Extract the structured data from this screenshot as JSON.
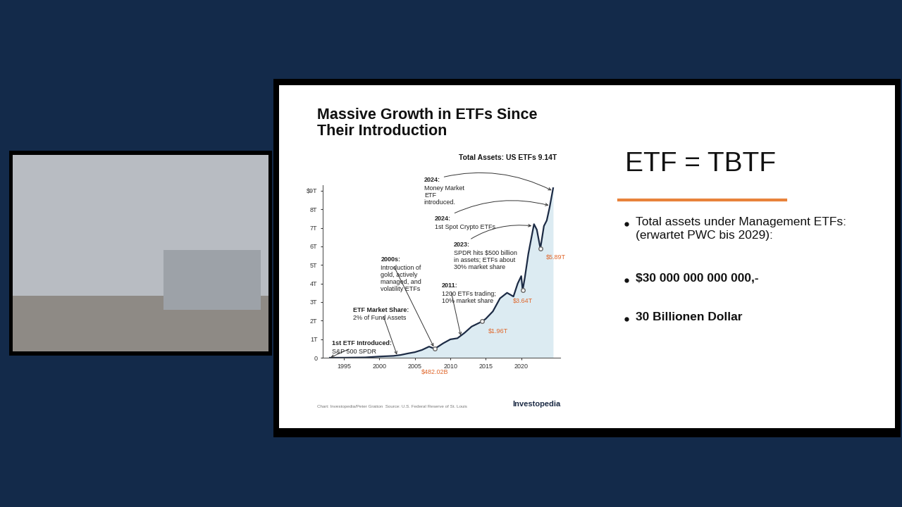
{
  "chart_data": {
    "type": "line",
    "title": "Massive Growth in ETFs Since\nTheir Introduction",
    "subtitle": "Total Assets: US ETFs 9.14T",
    "x": [
      1993.0,
      1995.0,
      1998.0,
      2000.0,
      2002.0,
      2003.0,
      2004.0,
      2005.0,
      2006.0,
      2007.0,
      2007.8,
      2009.0,
      2010.0,
      2011.0,
      2012.0,
      2013.0,
      2014.5,
      2015.0,
      2016.0,
      2017.0,
      2018.0,
      2018.9,
      2019.5,
      2020.0,
      2020.2,
      2020.5,
      2021.0,
      2021.8,
      2022.2,
      2022.7,
      2023.2,
      2023.6,
      2024.0,
      2024.5
    ],
    "values": [
      0.0,
      0.002,
      0.016,
      0.066,
      0.1,
      0.15,
      0.23,
      0.3,
      0.42,
      0.6,
      0.48202,
      0.78,
      0.99,
      1.05,
      1.34,
      1.68,
      1.96,
      2.1,
      2.5,
      3.2,
      3.5,
      3.3,
      4.0,
      4.4,
      3.64,
      4.3,
      5.6,
      7.2,
      6.9,
      5.89,
      7.1,
      7.4,
      8.1,
      9.14
    ],
    "color": "#1c2b45",
    "xlim": [
      1992,
      2025.5
    ],
    "xticks": [
      1995,
      2000,
      2005,
      2010,
      2015,
      2020
    ],
    "ylim": [
      0,
      9.3
    ],
    "yticks": [
      0,
      {
        "value": 1,
        "label": "1T"
      },
      {
        "value": 2,
        "label": "2T"
      },
      {
        "value": 3,
        "label": "3T"
      },
      {
        "value": 4,
        "label": "4T"
      },
      {
        "value": 5,
        "label": "5T"
      },
      {
        "value": 6,
        "label": "6T"
      },
      {
        "value": 7,
        "label": "7T"
      },
      {
        "value": 8,
        "label": "8T"
      },
      {
        "value": 9,
        "label": "$9T"
      }
    ],
    "grid": false,
    "highlights": [
      {
        "x": 2007.8,
        "value": 0.48202,
        "label": "$482.02B"
      },
      {
        "x": 2014.5,
        "value": 1.96,
        "label": "$1.96T"
      },
      {
        "x": 2020.2,
        "value": 3.64,
        "label": "$3.64T"
      },
      {
        "x": 2022.7,
        "value": 5.89,
        "label": "$5.89T"
      }
    ],
    "annotations": [
      {
        "heading": "1st ETF Introduced:",
        "text": "S&P 500 SPDR",
        "x": 1993.0,
        "value": 0.0
      },
      {
        "heading": "ETF Market Share:",
        "text": "2% of Fund Assets",
        "x": 2002.5,
        "value": 0.12
      },
      {
        "heading": "2000s:",
        "text": "Introduction of\ngold, actively\nmanaged, and\nvolatility ETFs",
        "x": 2007.7,
        "value": 0.55
      },
      {
        "heading": "2011:",
        "text": "1200 ETFs trading;\n10% market share",
        "x": 2011.5,
        "value": 1.15
      },
      {
        "heading": "2023:",
        "text": "SPDR hits $500 billion\nin assets; ETFs about\n30% market share",
        "x": 2021.6,
        "value": 7.1
      },
      {
        "heading": "2024:",
        "text": "1st Spot Crypto ETFs",
        "x": 2024.0,
        "value": 8.2
      },
      {
        "heading": "2024:",
        "text": "Money Market\nETF\nintroduced.",
        "x": 2024.4,
        "value": 9.0
      }
    ],
    "source": "Chart: Investopedia/Peter Gratton  Source: U.S. Federal Reserve of St. Louis",
    "logo": "Investopedia"
  },
  "slide": {
    "heading": "ETF = TBTF",
    "bullets": [
      "Total assets under Management ETFs:\n(erwartet PWC bis 2029):",
      "$30 000 000 000 000,-",
      "30 Billionen Dollar"
    ]
  }
}
